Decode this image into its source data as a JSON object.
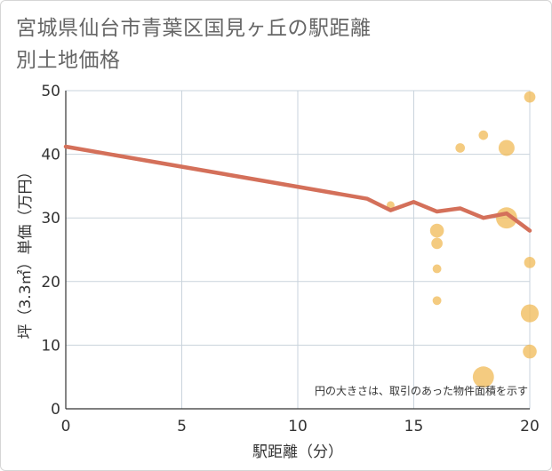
{
  "chart_data": {
    "type": "scatter",
    "title": "宮城県仙台市青葉区国見ヶ丘の駅距離別土地価格",
    "xlabel": "駅距離（分）",
    "ylabel": "坪（3.3㎡）単価（万円）",
    "xlim": [
      0,
      20
    ],
    "ylim": [
      0,
      50
    ],
    "xticks": [
      0,
      5,
      10,
      15,
      20
    ],
    "yticks": [
      0,
      10,
      20,
      30,
      40,
      50
    ],
    "grid": true,
    "note": "円の大きさは、取引のあった物件面積を示す",
    "colors": {
      "bubble": "#f0b955",
      "line": "#d4705a",
      "grid": "#c9d3dc",
      "axis": "#333333"
    },
    "bubbles": [
      {
        "x": 14,
        "y": 32,
        "size": 1
      },
      {
        "x": 16,
        "y": 28,
        "size": 3
      },
      {
        "x": 16,
        "y": 26,
        "size": 2
      },
      {
        "x": 16,
        "y": 22,
        "size": 1.2
      },
      {
        "x": 16,
        "y": 17,
        "size": 1.2
      },
      {
        "x": 17,
        "y": 41,
        "size": 1.4
      },
      {
        "x": 18,
        "y": 43,
        "size": 1.4
      },
      {
        "x": 18,
        "y": 5,
        "size": 7
      },
      {
        "x": 19,
        "y": 41,
        "size": 4
      },
      {
        "x": 19,
        "y": 30,
        "size": 7
      },
      {
        "x": 20,
        "y": 49,
        "size": 2
      },
      {
        "x": 20,
        "y": 23,
        "size": 2
      },
      {
        "x": 20,
        "y": 15,
        "size": 5
      },
      {
        "x": 20,
        "y": 9,
        "size": 3
      }
    ],
    "trend": {
      "x": [
        0,
        13,
        14,
        15,
        16,
        17,
        18,
        19,
        20
      ],
      "y": [
        41.2,
        33,
        31.2,
        32.5,
        31,
        31.5,
        30,
        30.7,
        28
      ]
    }
  }
}
